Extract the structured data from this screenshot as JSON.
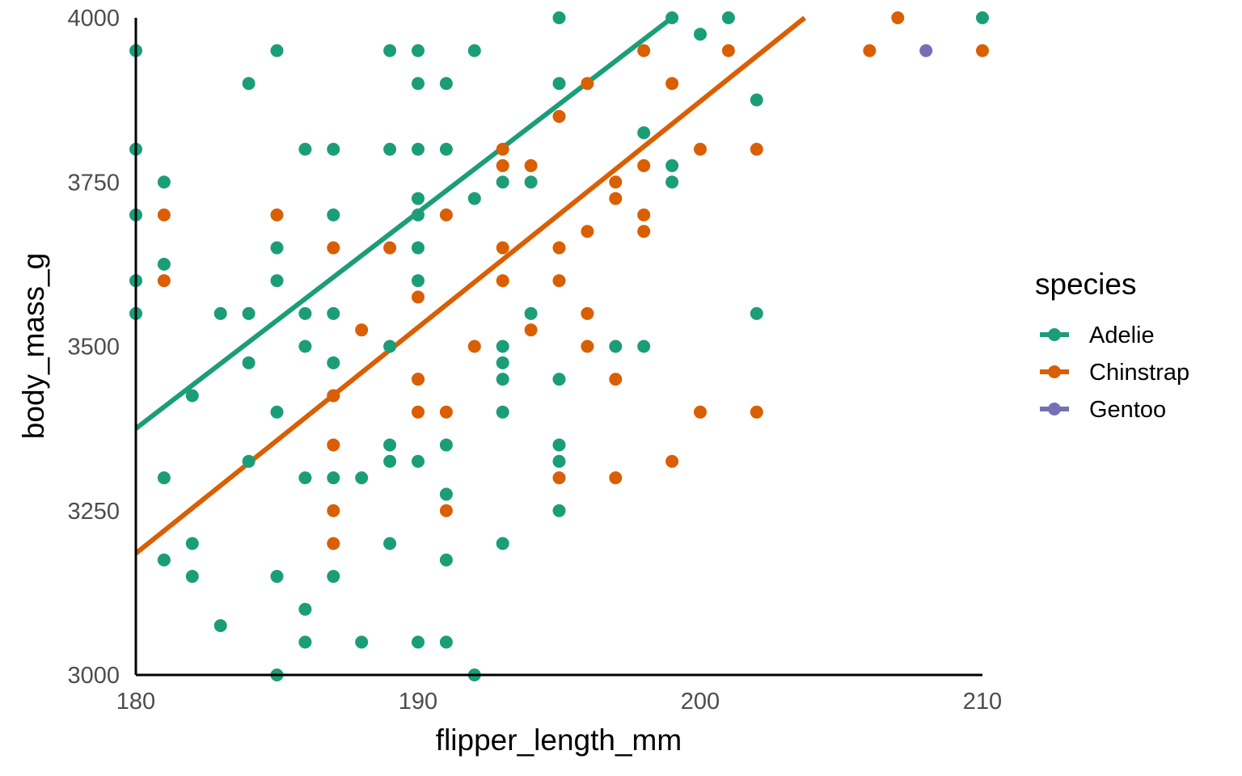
{
  "chart_data": {
    "type": "scatter",
    "xlabel": "flipper_length_mm",
    "ylabel": "body_mass_g",
    "xlim": [
      180,
      210
    ],
    "ylim": [
      3000,
      4000
    ],
    "x_ticks": [
      "180",
      "190",
      "200",
      "210"
    ],
    "y_ticks": [
      "3000",
      "3250",
      "3500",
      "3750",
      "4000"
    ],
    "grid": false,
    "legend": {
      "title": "species",
      "position": "right",
      "entries": [
        "Adelie",
        "Chinstrap",
        "Gentoo"
      ]
    },
    "series": [
      {
        "name": "Adelie",
        "color": "#1b9e77",
        "points": [
          [
            180,
            3950
          ],
          [
            180,
            3800
          ],
          [
            180,
            3700
          ],
          [
            180,
            3600
          ],
          [
            180,
            3550
          ],
          [
            181,
            3750
          ],
          [
            181,
            3625
          ],
          [
            181,
            3300
          ],
          [
            181,
            3175
          ],
          [
            182,
            3425
          ],
          [
            182,
            3200
          ],
          [
            182,
            3150
          ],
          [
            183,
            3550
          ],
          [
            183,
            3075
          ],
          [
            184,
            3900
          ],
          [
            184,
            3550
          ],
          [
            184,
            3475
          ],
          [
            184,
            3325
          ],
          [
            185,
            3950
          ],
          [
            185,
            3650
          ],
          [
            185,
            3600
          ],
          [
            185,
            3400
          ],
          [
            185,
            3150
          ],
          [
            185,
            3000
          ],
          [
            186,
            3800
          ],
          [
            186,
            3550
          ],
          [
            186,
            3500
          ],
          [
            186,
            3300
          ],
          [
            186,
            3100
          ],
          [
            186,
            3050
          ],
          [
            187,
            3800
          ],
          [
            187,
            3700
          ],
          [
            187,
            3550
          ],
          [
            187,
            3475
          ],
          [
            187,
            3425
          ],
          [
            187,
            3300
          ],
          [
            187,
            3150
          ],
          [
            188,
            3300
          ],
          [
            188,
            3050
          ],
          [
            189,
            3950
          ],
          [
            189,
            3800
          ],
          [
            189,
            3500
          ],
          [
            189,
            3350
          ],
          [
            189,
            3325
          ],
          [
            189,
            3200
          ],
          [
            190,
            3950
          ],
          [
            190,
            3900
          ],
          [
            190,
            3800
          ],
          [
            190,
            3725
          ],
          [
            190,
            3700
          ],
          [
            190,
            3650
          ],
          [
            190,
            3600
          ],
          [
            190,
            3450
          ],
          [
            190,
            3325
          ],
          [
            190,
            3050
          ],
          [
            191,
            3900
          ],
          [
            191,
            3800
          ],
          [
            191,
            3350
          ],
          [
            191,
            3275
          ],
          [
            191,
            3175
          ],
          [
            191,
            3050
          ],
          [
            192,
            3950
          ],
          [
            192,
            3725
          ],
          [
            192,
            3000
          ],
          [
            193,
            3750
          ],
          [
            193,
            3500
          ],
          [
            193,
            3475
          ],
          [
            193,
            3450
          ],
          [
            193,
            3400
          ],
          [
            193,
            3200
          ],
          [
            194,
            3750
          ],
          [
            194,
            3550
          ],
          [
            195,
            4000
          ],
          [
            195,
            3900
          ],
          [
            195,
            3450
          ],
          [
            195,
            3350
          ],
          [
            195,
            3325
          ],
          [
            195,
            3250
          ],
          [
            197,
            3500
          ],
          [
            198,
            3825
          ],
          [
            198,
            3500
          ],
          [
            199,
            4000
          ],
          [
            199,
            3775
          ],
          [
            199,
            3750
          ],
          [
            200,
            3975
          ],
          [
            201,
            4000
          ],
          [
            202,
            3875
          ],
          [
            202,
            3550
          ],
          [
            210,
            4000
          ]
        ],
        "fit": [
          [
            180,
            3375
          ],
          [
            199,
            4000
          ]
        ]
      },
      {
        "name": "Chinstrap",
        "color": "#d95f02",
        "points": [
          [
            181,
            3700
          ],
          [
            181,
            3600
          ],
          [
            185,
            3700
          ],
          [
            187,
            3650
          ],
          [
            187,
            3425
          ],
          [
            187,
            3350
          ],
          [
            187,
            3250
          ],
          [
            187,
            3200
          ],
          [
            188,
            3525
          ],
          [
            189,
            3650
          ],
          [
            190,
            3575
          ],
          [
            190,
            3450
          ],
          [
            190,
            3400
          ],
          [
            191,
            3700
          ],
          [
            191,
            3400
          ],
          [
            191,
            3250
          ],
          [
            192,
            3500
          ],
          [
            193,
            3800
          ],
          [
            193,
            3775
          ],
          [
            193,
            3650
          ],
          [
            193,
            3600
          ],
          [
            194,
            3775
          ],
          [
            194,
            3525
          ],
          [
            195,
            3850
          ],
          [
            195,
            3650
          ],
          [
            195,
            3600
          ],
          [
            195,
            3300
          ],
          [
            196,
            3900
          ],
          [
            196,
            3675
          ],
          [
            196,
            3550
          ],
          [
            196,
            3500
          ],
          [
            197,
            3750
          ],
          [
            197,
            3725
          ],
          [
            197,
            3450
          ],
          [
            197,
            3300
          ],
          [
            198,
            3950
          ],
          [
            198,
            3775
          ],
          [
            198,
            3700
          ],
          [
            198,
            3675
          ],
          [
            199,
            3900
          ],
          [
            199,
            3325
          ],
          [
            200,
            3800
          ],
          [
            200,
            3400
          ],
          [
            201,
            3950
          ],
          [
            202,
            3800
          ],
          [
            202,
            3400
          ],
          [
            206,
            3950
          ],
          [
            207,
            4000
          ],
          [
            210,
            3950
          ]
        ],
        "fit": [
          [
            180,
            3185
          ],
          [
            203.7,
            4000
          ]
        ]
      },
      {
        "name": "Gentoo",
        "color": "#7570b3",
        "points": [
          [
            208,
            3950
          ]
        ]
      }
    ]
  }
}
